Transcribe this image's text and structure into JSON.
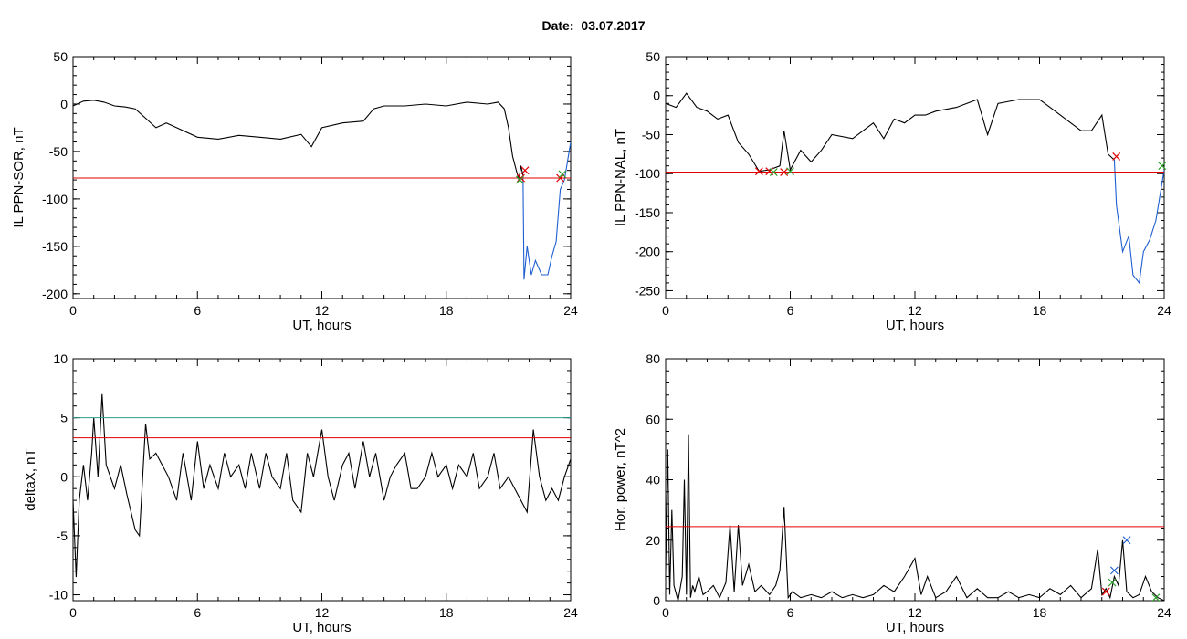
{
  "header": {
    "date_label": "Date:",
    "date_value": "03.07.2017"
  },
  "colors": {
    "threshold_red": "#e00000",
    "threshold_teal": "#2a9d8f",
    "trace_black": "#000000",
    "trace_blue": "#1f5fd0",
    "marker_red": "#e00000",
    "marker_green": "#2ca02c",
    "marker_blue": "#1f5fd0"
  },
  "chart_data": [
    {
      "type": "line",
      "id": "sor",
      "xlabel": "UT, hours",
      "ylabel": "IL PPN-SOR, nT",
      "xlim": [
        0,
        24
      ],
      "ylim": [
        -205,
        50
      ],
      "xticks": [
        0,
        6,
        12,
        18,
        24
      ],
      "yticks": [
        50,
        0,
        -50,
        -100,
        -150,
        -200
      ],
      "thresholds": [
        {
          "y": -78,
          "color": "red"
        }
      ],
      "series": [
        {
          "color": "black",
          "x": [
            0,
            0.5,
            1,
            1.5,
            2,
            2.5,
            3,
            3.5,
            4,
            4.5,
            5,
            6,
            7,
            8,
            9,
            10,
            11,
            11.5,
            12,
            13,
            14,
            14.5,
            15,
            16,
            17,
            18,
            19,
            20,
            20.5,
            20.8,
            21,
            21.2,
            21.5,
            21.6,
            21.7
          ],
          "y": [
            -2,
            3,
            4,
            2,
            -2,
            -3,
            -5,
            -15,
            -25,
            -20,
            -25,
            -35,
            -37,
            -33,
            -35,
            -37,
            -32,
            -45,
            -25,
            -20,
            -18,
            -5,
            -2,
            -2,
            0,
            -2,
            2,
            0,
            2,
            -5,
            -25,
            -55,
            -80,
            -65,
            -75
          ]
        },
        {
          "color": "blue",
          "x": [
            21.7,
            21.75,
            21.9,
            22.1,
            22.3,
            22.6,
            22.9,
            23.1,
            23.3,
            23.5,
            23.7,
            24
          ],
          "y": [
            -75,
            -185,
            -150,
            -180,
            -165,
            -180,
            -180,
            -160,
            -145,
            -90,
            -80,
            -40
          ]
        }
      ],
      "markers": [
        {
          "x": 21.6,
          "y": -78,
          "color": "red"
        },
        {
          "x": 21.8,
          "y": -70,
          "color": "red"
        },
        {
          "x": 21.55,
          "y": -80,
          "color": "green"
        },
        {
          "x": 23.5,
          "y": -78,
          "color": "red"
        },
        {
          "x": 23.6,
          "y": -74,
          "color": "green"
        }
      ]
    },
    {
      "type": "line",
      "id": "nal",
      "xlabel": "UT, hours",
      "ylabel": "IL PPN-NAL, nT",
      "xlim": [
        0,
        24
      ],
      "ylim": [
        -260,
        50
      ],
      "xticks": [
        0,
        6,
        12,
        18,
        24
      ],
      "yticks": [
        50,
        0,
        -50,
        -100,
        -150,
        -200,
        -250
      ],
      "thresholds": [
        {
          "y": -98,
          "color": "red"
        }
      ],
      "series": [
        {
          "color": "black",
          "x": [
            0,
            0.5,
            1,
            1.5,
            2,
            2.5,
            3,
            3.5,
            4,
            4.5,
            5,
            5.5,
            5.7,
            6,
            6.5,
            7,
            7.5,
            8,
            9,
            10,
            10.5,
            11,
            11.5,
            12,
            12.5,
            13,
            14,
            15,
            15.5,
            16,
            17,
            18,
            19,
            20,
            20.5,
            21,
            21.3,
            21.5,
            21.6
          ],
          "y": [
            -10,
            -15,
            3,
            -15,
            -20,
            -30,
            -25,
            -60,
            -75,
            -97,
            -95,
            -90,
            -45,
            -95,
            -70,
            -85,
            -70,
            -50,
            -55,
            -35,
            -55,
            -30,
            -35,
            -25,
            -25,
            -20,
            -15,
            -5,
            -50,
            -10,
            -5,
            -5,
            -25,
            -45,
            -45,
            -25,
            -75,
            -80,
            -82
          ]
        },
        {
          "color": "blue",
          "x": [
            21.6,
            21.7,
            22,
            22.3,
            22.5,
            22.8,
            23,
            23.3,
            23.6,
            24
          ],
          "y": [
            -82,
            -140,
            -200,
            -180,
            -230,
            -240,
            -200,
            -185,
            -160,
            -95
          ]
        }
      ],
      "markers": [
        {
          "x": 4.5,
          "y": -97,
          "color": "red"
        },
        {
          "x": 5,
          "y": -97,
          "color": "red"
        },
        {
          "x": 5.2,
          "y": -98,
          "color": "green"
        },
        {
          "x": 5.7,
          "y": -98,
          "color": "red"
        },
        {
          "x": 6,
          "y": -97,
          "color": "green"
        },
        {
          "x": 21.7,
          "y": -78,
          "color": "red"
        },
        {
          "x": 23.9,
          "y": -90,
          "color": "green"
        }
      ]
    },
    {
      "type": "line",
      "id": "deltax",
      "xlabel": "UT, hours",
      "ylabel": "deltaX, nT",
      "xlim": [
        0,
        24
      ],
      "ylim": [
        -10.5,
        10
      ],
      "xticks": [
        0,
        6,
        12,
        18,
        24
      ],
      "yticks": [
        10,
        5,
        0,
        -5,
        -10
      ],
      "thresholds": [
        {
          "y": 5,
          "color": "teal"
        },
        {
          "y": 3.3,
          "color": "red"
        }
      ],
      "series": [
        {
          "color": "black",
          "x": [
            0,
            0.15,
            0.3,
            0.5,
            0.7,
            0.9,
            1,
            1.2,
            1.4,
            1.6,
            1.8,
            2,
            2.3,
            2.6,
            3,
            3.2,
            3.5,
            3.7,
            4,
            4.3,
            4.6,
            5,
            5.3,
            5.7,
            6,
            6.3,
            6.6,
            7,
            7.3,
            7.6,
            8,
            8.3,
            8.6,
            9,
            9.3,
            9.6,
            10,
            10.3,
            10.6,
            11,
            11.3,
            11.6,
            12,
            12.3,
            12.6,
            13,
            13.3,
            13.6,
            14,
            14.3,
            14.6,
            15,
            15.3,
            15.6,
            16,
            16.3,
            16.6,
            17,
            17.3,
            17.6,
            18,
            18.3,
            18.6,
            19,
            19.3,
            19.6,
            20,
            20.3,
            20.6,
            21,
            21.3,
            21.6,
            21.9,
            22.2,
            22.5,
            22.8,
            23.1,
            23.4,
            23.7,
            24
          ],
          "y": [
            -2,
            -8.5,
            -2,
            1,
            -2,
            2,
            5,
            0,
            7,
            1,
            0,
            -1,
            1,
            -1.5,
            -4.5,
            -5,
            4.5,
            1.5,
            2,
            1,
            0,
            -2,
            2,
            -2,
            3,
            -1,
            1,
            -1,
            2,
            0,
            1,
            -1,
            2,
            -1,
            2,
            0,
            -1,
            2,
            -2,
            -3,
            2,
            0,
            4,
            0,
            -2,
            1,
            2,
            -1,
            3,
            0,
            2,
            -2,
            0,
            1,
            2,
            -1,
            -1,
            0,
            2,
            0,
            1,
            -1,
            1,
            0,
            2,
            -1,
            0,
            2,
            -1,
            0,
            -1,
            -2,
            -3,
            4,
            0,
            -2,
            -1,
            -2,
            0,
            1.5
          ]
        }
      ],
      "markers": []
    },
    {
      "type": "line",
      "id": "hp",
      "xlabel": "UT, hours",
      "ylabel": "Hor. power, nT^2",
      "xlim": [
        0,
        24
      ],
      "ylim": [
        0,
        80
      ],
      "xticks": [
        0,
        6,
        12,
        18,
        24
      ],
      "yticks": [
        80,
        60,
        40,
        20,
        0
      ],
      "thresholds": [
        {
          "y": 24.5,
          "color": "red"
        }
      ],
      "series": [
        {
          "color": "black",
          "x": [
            0,
            0.1,
            0.2,
            0.3,
            0.4,
            0.6,
            0.8,
            0.9,
            1,
            1.1,
            1.2,
            1.3,
            1.4,
            1.6,
            1.8,
            2,
            2.3,
            2.6,
            2.9,
            3.1,
            3.3,
            3.5,
            3.7,
            4,
            4.3,
            4.6,
            5,
            5.3,
            5.5,
            5.7,
            5.9,
            6.1,
            6.5,
            7,
            7.5,
            8,
            8.5,
            9,
            9.5,
            10,
            10.5,
            11,
            11.5,
            12,
            12.3,
            12.6,
            13,
            13.5,
            14,
            14.5,
            15,
            15.5,
            16,
            16.5,
            17,
            17.5,
            18,
            18.5,
            19,
            19.5,
            20,
            20.5,
            20.8,
            21,
            21.2,
            21.4,
            21.6,
            21.8,
            22,
            22.2,
            22.5,
            22.8,
            23.1,
            23.4,
            23.7,
            24
          ],
          "y": [
            10,
            50,
            2,
            30,
            5,
            0,
            8,
            40,
            2,
            55,
            1,
            5,
            3,
            8,
            2,
            3,
            5,
            1,
            6,
            25,
            3,
            25,
            5,
            12,
            3,
            5,
            2,
            5,
            10,
            31,
            1,
            3,
            1,
            2,
            1,
            3,
            1,
            2,
            1,
            2,
            5,
            3,
            8,
            14,
            2,
            8,
            1,
            3,
            8,
            1,
            4,
            1,
            1,
            3,
            1,
            2,
            1,
            4,
            2,
            5,
            1,
            4,
            17,
            2,
            4,
            1,
            8,
            5,
            20,
            3,
            1,
            2,
            8,
            3,
            1,
            0
          ]
        }
      ],
      "markers": [
        {
          "x": 21.6,
          "y": 10,
          "color": "blue"
        },
        {
          "x": 21.5,
          "y": 6,
          "color": "green"
        },
        {
          "x": 21.2,
          "y": 3,
          "color": "red"
        },
        {
          "x": 22.2,
          "y": 20,
          "color": "blue"
        },
        {
          "x": 23.6,
          "y": 1,
          "color": "green"
        }
      ]
    }
  ]
}
